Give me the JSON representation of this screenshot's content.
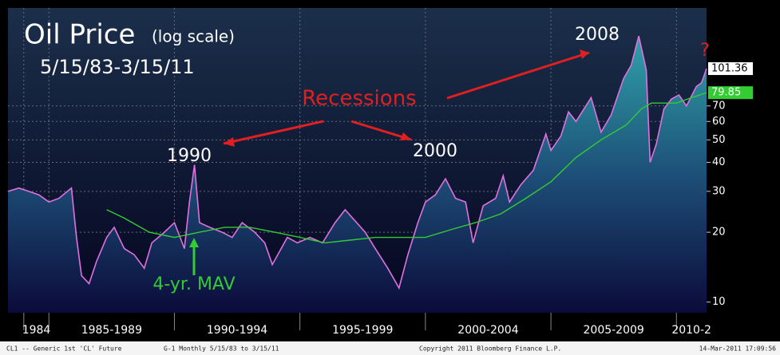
{
  "chart_data": {
    "type": "line",
    "title": "Oil Price",
    "subtitle": "(log scale)",
    "date_range": "5/15/83-3/15/11",
    "annotations": [
      "Recessions",
      "1990",
      "2000",
      "2008",
      "?",
      "4-yr. MAV"
    ],
    "footer": [
      "CL1 -- Generic 1st 'CL' Future",
      "G-1  Monthly  5/15/83 to 3/15/11",
      "Copyright 2011 Bloomberg Finance L.P.",
      "14-Mar-2011 17:09:56"
    ],
    "log_scale": true,
    "grid": true,
    "xlim": [
      1983.37,
      2011.2
    ],
    "xticks": [
      1984,
      {
        "value": 1985,
        "label": "1985-1989"
      },
      {
        "value": 1990,
        "label": "1990-1994"
      },
      {
        "value": 1995,
        "label": "1995-1999"
      },
      {
        "value": 2000,
        "label": "2000-2004"
      },
      {
        "value": 2005,
        "label": "2005-2009"
      },
      {
        "value": 2010,
        "label": "2010-2"
      }
    ],
    "ylim": [
      9,
      185
    ],
    "yticks": [
      10,
      20,
      30,
      40,
      50,
      60,
      70
    ],
    "series": [
      {
        "color": "#e070e0",
        "x": [
          1983.37,
          1983.8,
          1984.2,
          1984.6,
          1985.0,
          1985.4,
          1985.9,
          1986.1,
          1986.3,
          1986.6,
          1986.9,
          1987.3,
          1987.6,
          1988.0,
          1988.4,
          1988.8,
          1989.1,
          1989.6,
          1990.0,
          1990.4,
          1990.6,
          1990.8,
          1991.0,
          1991.4,
          1991.9,
          1992.3,
          1992.7,
          1993.2,
          1993.6,
          1993.9,
          1994.5,
          1994.9,
          1995.4,
          1995.9,
          1996.4,
          1996.8,
          1997.1,
          1997.6,
          1998.0,
          1998.5,
          1998.95,
          1999.3,
          1999.7,
          2000.0,
          2000.4,
          2000.8,
          2001.2,
          2001.6,
          2001.9,
          2002.3,
          2002.8,
          2003.1,
          2003.35,
          2003.8,
          2004.3,
          2004.8,
          2005.0,
          2005.4,
          2005.7,
          2006.0,
          2006.6,
          2007.0,
          2007.4,
          2007.9,
          2008.2,
          2008.5,
          2008.8,
          2008.95,
          2009.2,
          2009.5,
          2009.8,
          2010.1,
          2010.4,
          2010.8,
          2011.0,
          2011.2
        ],
        "values": [
          30,
          31,
          30,
          29,
          27,
          28,
          31,
          19,
          13,
          12,
          15,
          19,
          21,
          17,
          16,
          14,
          18,
          20,
          22,
          17,
          27,
          39,
          22,
          21,
          20,
          19,
          22,
          20,
          18,
          14.5,
          19,
          18,
          19,
          18,
          22,
          25,
          23,
          20,
          17,
          14,
          11.5,
          16,
          22,
          27,
          29,
          34,
          28,
          27,
          18,
          26,
          28,
          35,
          27,
          32,
          37,
          53,
          45,
          52,
          66,
          60,
          76,
          54,
          64,
          92,
          105,
          140,
          100,
          40,
          48,
          68,
          75,
          78,
          70,
          85,
          88,
          101.36
        ]
      },
      {
        "color": "#33cc33",
        "x": [
          1987.3,
          1988.0,
          1989.0,
          1990.0,
          1991.0,
          1992.0,
          1993.0,
          1994.0,
          1995.0,
          1996.0,
          1997.0,
          1998.0,
          1999.0,
          2000.0,
          2001.0,
          2002.0,
          2003.0,
          2004.0,
          2005.0,
          2006.0,
          2007.0,
          2008.0,
          2008.6,
          2009.0,
          2009.5,
          2010.0,
          2010.6,
          2011.2
        ],
        "values": [
          25,
          23,
          20,
          19,
          20,
          21,
          21,
          20,
          19,
          18,
          18.5,
          19,
          19,
          19,
          20.5,
          22,
          24,
          28,
          33,
          42,
          50,
          58,
          68,
          72,
          72,
          72,
          76,
          79.85
        ]
      }
    ]
  }
}
